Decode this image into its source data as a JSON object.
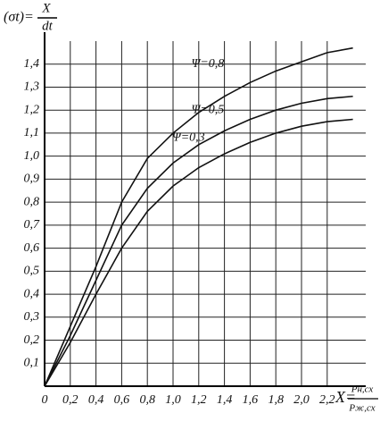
{
  "chart_data": {
    "type": "line",
    "y_label": "(σt)=",
    "y_label_fraction": [
      "X",
      "dt"
    ],
    "x_label": "X=",
    "x_label_fraction": [
      "Pн,сх",
      "Pж,сх"
    ],
    "x": [
      0,
      0.2,
      0.4,
      0.6,
      0.8,
      1.0,
      1.2,
      1.4,
      1.6,
      1.8,
      2.0,
      2.2,
      2.4
    ],
    "series": [
      {
        "name": "Ψ=0,8",
        "color": "#111111",
        "values": [
          0,
          0.26,
          0.52,
          0.8,
          0.99,
          1.1,
          1.19,
          1.26,
          1.32,
          1.37,
          1.41,
          1.45,
          1.47
        ]
      },
      {
        "name": "Ψ=0,5",
        "color": "#111111",
        "values": [
          0,
          0.22,
          0.46,
          0.7,
          0.86,
          0.97,
          1.05,
          1.11,
          1.16,
          1.2,
          1.23,
          1.25,
          1.26
        ]
      },
      {
        "name": "Ψ=0,3",
        "color": "#111111",
        "values": [
          0,
          0.19,
          0.4,
          0.6,
          0.76,
          0.87,
          0.95,
          1.01,
          1.06,
          1.1,
          1.13,
          1.15,
          1.16
        ]
      }
    ],
    "xlim": [
      0,
      2.5
    ],
    "ylim": [
      0,
      1.5
    ],
    "xticks": [
      0,
      {
        "value": 0.2,
        "label": "0,2"
      },
      {
        "value": 0.4,
        "label": "0,4"
      },
      {
        "value": 0.6,
        "label": "0,6"
      },
      {
        "value": 0.8,
        "label": "0,8"
      },
      {
        "value": 1.0,
        "label": "1,0"
      },
      {
        "value": 1.2,
        "label": "1,2"
      },
      {
        "value": 1.4,
        "label": "1,4"
      },
      {
        "value": 1.6,
        "label": "1,6"
      },
      {
        "value": 1.8,
        "label": "1,8"
      },
      {
        "value": 2.0,
        "label": "2,0"
      },
      {
        "value": 2.2,
        "label": "2,2"
      }
    ],
    "yticks": [
      {
        "value": 0.1,
        "label": "0,1"
      },
      {
        "value": 0.2,
        "label": "0,2"
      },
      {
        "value": 0.3,
        "label": "0,3"
      },
      {
        "value": 0.4,
        "label": "0,4"
      },
      {
        "value": 0.5,
        "label": "0,5"
      },
      {
        "value": 0.6,
        "label": "0,6"
      },
      {
        "value": 0.7,
        "label": "0,7"
      },
      {
        "value": 0.8,
        "label": "0,8"
      },
      {
        "value": 0.9,
        "label": "0,9"
      },
      {
        "value": 1.0,
        "label": "1,0"
      },
      {
        "value": 1.1,
        "label": "1,1"
      },
      {
        "value": 1.2,
        "label": "1,2"
      },
      {
        "value": 1.3,
        "label": "1,3"
      },
      {
        "value": 1.4,
        "label": "1,4"
      }
    ],
    "grid": true
  }
}
